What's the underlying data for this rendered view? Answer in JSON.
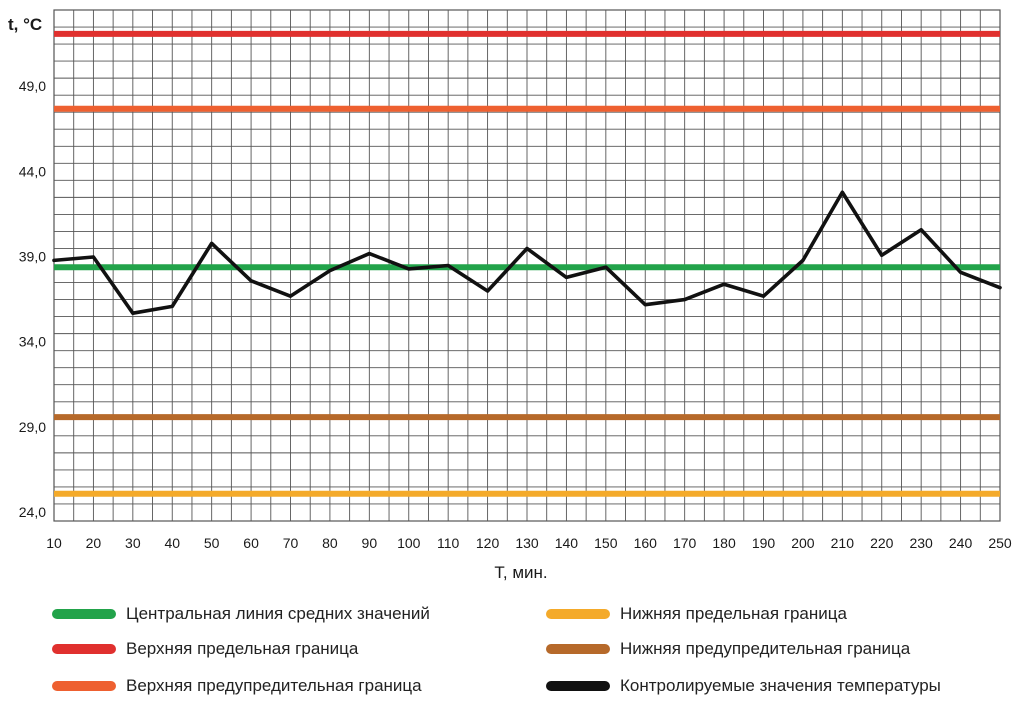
{
  "chart_data": {
    "type": "line",
    "ylabel": "t, °C",
    "xlabel": "T, мин.",
    "x": [
      10,
      20,
      30,
      40,
      50,
      60,
      70,
      80,
      90,
      100,
      110,
      120,
      130,
      140,
      150,
      160,
      170,
      180,
      190,
      200,
      210,
      220,
      230,
      240,
      250
    ],
    "xlim": [
      10,
      250
    ],
    "ylim": [
      24.0,
      54.0
    ],
    "yticks": [
      "24,0",
      "29,0",
      "34,0",
      "39,0",
      "44,0",
      "49,0"
    ],
    "ytick_values": [
      24,
      29,
      34,
      39,
      44,
      49
    ],
    "grid": true,
    "series": [
      {
        "name": "Контролируемые значения температуры",
        "color": "#111111",
        "values": [
          39.3,
          39.5,
          36.2,
          36.6,
          40.3,
          38.1,
          37.2,
          38.7,
          39.7,
          38.8,
          39.0,
          37.5,
          40.0,
          38.3,
          38.9,
          36.7,
          37.0,
          37.9,
          37.2,
          39.3,
          43.3,
          39.6,
          41.1,
          38.6,
          37.7
        ]
      }
    ],
    "reference_lines": [
      {
        "name": "Верхняя предельная граница",
        "value": 52.6,
        "color": "#e0302e"
      },
      {
        "name": "Верхняя предупредительная граница",
        "value": 48.2,
        "color": "#ee6030"
      },
      {
        "name": "Центральная линия средних значений",
        "value": 38.9,
        "color": "#22a34a"
      },
      {
        "name": "Нижняя предупредительная граница",
        "value": 30.1,
        "color": "#b6692a"
      },
      {
        "name": "Нижняя предельная граница",
        "value": 25.6,
        "color": "#f4aa2a"
      }
    ]
  },
  "legend": {
    "items": [
      {
        "label": "Центральная линия средних значений",
        "color": "#22a34a"
      },
      {
        "label": "Нижняя предельная граница",
        "color": "#f4aa2a"
      },
      {
        "label": "Верхняя предельная граница",
        "color": "#e0302e"
      },
      {
        "label": "Нижняя предупредительная граница",
        "color": "#b6692a"
      },
      {
        "label": "Верхняя предупредительная граница",
        "color": "#ee6030"
      },
      {
        "label": "Контролируемые значения температуры",
        "color": "#111111"
      }
    ]
  }
}
